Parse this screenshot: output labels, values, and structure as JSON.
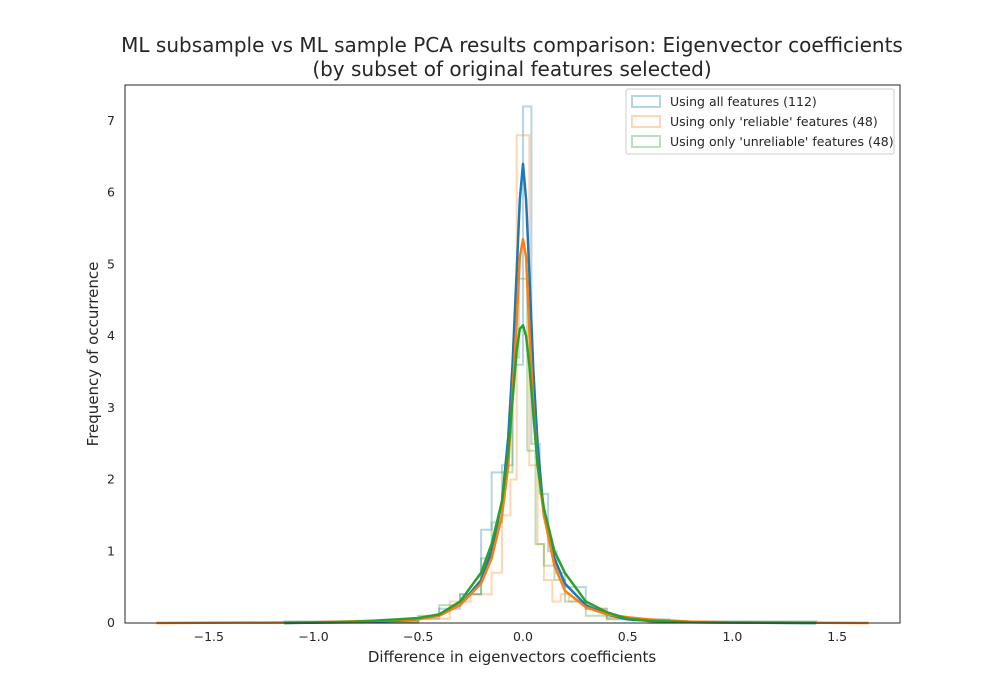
{
  "chart_data": {
    "type": "histogram+kde",
    "title": "ML subsample vs ML sample PCA results comparison: Eigenvector coefficients",
    "subtitle": "(by subset of original features selected)",
    "xlabel": "Difference in eigenvectors coefficients",
    "ylabel": "Frequency of occurrence",
    "xlim": [
      -1.9,
      1.8
    ],
    "ylim": [
      0,
      7.5
    ],
    "xticks": [
      -1.5,
      -1.0,
      -0.5,
      0.0,
      0.5,
      1.0,
      1.5
    ],
    "xtick_labels": [
      "−1.5",
      "−1.0",
      "−0.5",
      "0.0",
      "0.5",
      "1.0",
      "1.5"
    ],
    "yticks": [
      0,
      1,
      2,
      3,
      4,
      5,
      6,
      7
    ],
    "ytick_labels": [
      "0",
      "1",
      "2",
      "3",
      "4",
      "5",
      "6",
      "7"
    ],
    "grid": false,
    "legend_position": "top-right",
    "series": [
      {
        "name": "Using all features (112)",
        "color": "#1f77b4",
        "hist": {
          "edges": [
            -1.14,
            -0.5,
            -0.4,
            -0.3,
            -0.2,
            -0.15,
            -0.1,
            -0.05,
            0.0,
            0.04,
            0.08,
            0.12,
            0.16,
            0.2,
            0.3,
            0.4,
            0.5,
            0.7,
            1.4
          ],
          "counts": [
            0.02,
            0.06,
            0.2,
            0.4,
            1.3,
            2.1,
            2.2,
            3.6,
            7.2,
            2.5,
            1.8,
            1.0,
            0.7,
            0.5,
            0.2,
            0.08,
            0.05,
            0.02
          ]
        },
        "kde": {
          "x": [
            -1.14,
            -0.8,
            -0.6,
            -0.5,
            -0.4,
            -0.3,
            -0.2,
            -0.15,
            -0.1,
            -0.07,
            -0.05,
            -0.03,
            -0.015,
            0.0,
            0.015,
            0.03,
            0.05,
            0.07,
            0.1,
            0.15,
            0.2,
            0.3,
            0.4,
            0.5,
            0.6,
            0.8,
            1.4
          ],
          "y": [
            0.0,
            0.01,
            0.03,
            0.05,
            0.12,
            0.25,
            0.6,
            1.0,
            1.7,
            2.6,
            3.6,
            4.9,
            5.9,
            6.4,
            5.9,
            4.9,
            3.5,
            2.5,
            1.5,
            0.9,
            0.55,
            0.25,
            0.12,
            0.05,
            0.03,
            0.01,
            0.0
          ]
        }
      },
      {
        "name": "Using only 'reliable' features (48)",
        "color": "#ff7f0e",
        "hist": {
          "edges": [
            -1.75,
            -0.5,
            -0.35,
            -0.25,
            -0.15,
            -0.1,
            -0.06,
            -0.03,
            0.03,
            0.07,
            0.1,
            0.14,
            0.18,
            0.22,
            0.3,
            0.4,
            0.6,
            1.65
          ],
          "counts": [
            0.0,
            0.06,
            0.3,
            0.4,
            0.7,
            1.5,
            2.0,
            6.8,
            2.2,
            1.1,
            0.6,
            0.3,
            0.4,
            0.3,
            0.2,
            0.06,
            0.0
          ]
        },
        "kde": {
          "x": [
            -1.75,
            -1.0,
            -0.7,
            -0.5,
            -0.4,
            -0.3,
            -0.2,
            -0.15,
            -0.1,
            -0.07,
            -0.05,
            -0.03,
            -0.015,
            0.0,
            0.015,
            0.03,
            0.05,
            0.07,
            0.1,
            0.15,
            0.2,
            0.3,
            0.4,
            0.5,
            0.6,
            0.8,
            1.0,
            1.65
          ],
          "y": [
            0.0,
            0.01,
            0.03,
            0.05,
            0.1,
            0.25,
            0.55,
            0.9,
            1.5,
            2.2,
            3.2,
            4.2,
            5.1,
            5.35,
            5.1,
            4.1,
            3.0,
            2.2,
            1.5,
            0.8,
            0.45,
            0.22,
            0.12,
            0.08,
            0.05,
            0.02,
            0.01,
            0.0
          ]
        }
      },
      {
        "name": "Using only 'unreliable' features (48)",
        "color": "#2ca02c",
        "hist": {
          "edges": [
            -1.14,
            -0.5,
            -0.4,
            -0.3,
            -0.2,
            -0.15,
            -0.1,
            -0.05,
            -0.02,
            0.02,
            0.06,
            0.1,
            0.15,
            0.2,
            0.3,
            0.4,
            0.6,
            1.4
          ],
          "counts": [
            0.02,
            0.1,
            0.25,
            0.4,
            0.9,
            1.4,
            2.1,
            3.7,
            4.8,
            2.4,
            1.1,
            0.8,
            0.6,
            0.3,
            0.1,
            0.05,
            0.02
          ]
        },
        "kde": {
          "x": [
            -1.14,
            -0.8,
            -0.6,
            -0.5,
            -0.4,
            -0.3,
            -0.2,
            -0.15,
            -0.1,
            -0.07,
            -0.05,
            -0.03,
            -0.015,
            0.0,
            0.015,
            0.03,
            0.05,
            0.07,
            0.1,
            0.15,
            0.2,
            0.3,
            0.4,
            0.5,
            0.6,
            0.8,
            1.4
          ],
          "y": [
            0.0,
            0.02,
            0.05,
            0.07,
            0.12,
            0.3,
            0.7,
            1.1,
            1.7,
            2.4,
            3.1,
            3.8,
            4.1,
            4.15,
            4.0,
            3.6,
            2.9,
            2.2,
            1.6,
            1.0,
            0.7,
            0.3,
            0.15,
            0.06,
            0.03,
            0.01,
            0.0
          ]
        }
      }
    ]
  }
}
